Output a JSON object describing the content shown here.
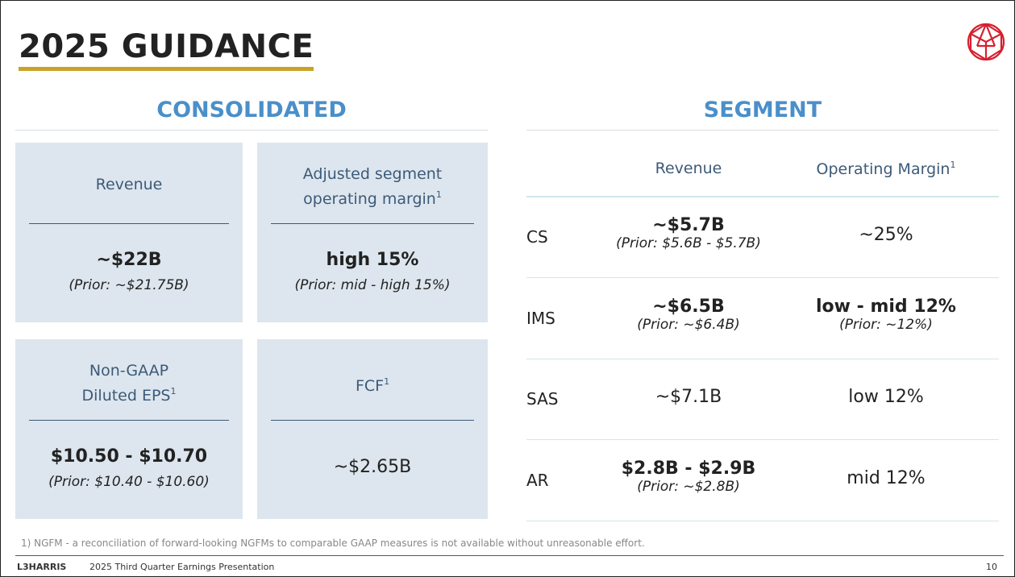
{
  "title": "2025 GUIDANCE",
  "consolidated": {
    "heading": "CONSOLIDATED",
    "cards": [
      {
        "label": [
          "Revenue"
        ],
        "value": "~$22B",
        "prior": "(Prior: ~$21.75B)"
      },
      {
        "label": [
          "Adjusted segment",
          "operating margin"
        ],
        "sup": "1",
        "value": "high 15%",
        "prior": "(Prior: mid - high 15%)"
      },
      {
        "label": [
          "Non-GAAP",
          "Diluted EPS"
        ],
        "sup": "1",
        "value": "$10.50 - $10.70",
        "prior": "(Prior: $10.40 - $10.60)"
      },
      {
        "label": [
          "FCF"
        ],
        "sup": "1",
        "value": "~$2.65B"
      }
    ]
  },
  "segment": {
    "heading": "SEGMENT",
    "columns": [
      {
        "label": "Revenue"
      },
      {
        "label": "Operating Margin",
        "sup": "1"
      }
    ],
    "rows": [
      {
        "name": "CS",
        "revenue": {
          "value": "~$5.7B",
          "prior": "(Prior: $5.6B - $5.7B)"
        },
        "margin": {
          "value": "~25%"
        }
      },
      {
        "name": "IMS",
        "revenue": {
          "value": "~$6.5B",
          "prior": "(Prior: ~$6.4B)"
        },
        "margin": {
          "value": "low - mid 12%",
          "prior": "(Prior: ~12%)"
        }
      },
      {
        "name": "SAS",
        "revenue": {
          "value": "~$7.1B"
        },
        "margin": {
          "value": "low 12%"
        }
      },
      {
        "name": "AR",
        "revenue": {
          "value": "$2.8B - $2.9B",
          "prior": "(Prior: ~$2.8B)"
        },
        "margin": {
          "value": "mid 12%"
        }
      }
    ]
  },
  "footnote": "1) NGFM - a reconciliation of forward-looking NGFMs to comparable GAAP measures is not available without unreasonable effort.",
  "footer": {
    "brand": "L3HARRIS",
    "text": "2025 Third Quarter Earnings Presentation",
    "page": "10"
  }
}
